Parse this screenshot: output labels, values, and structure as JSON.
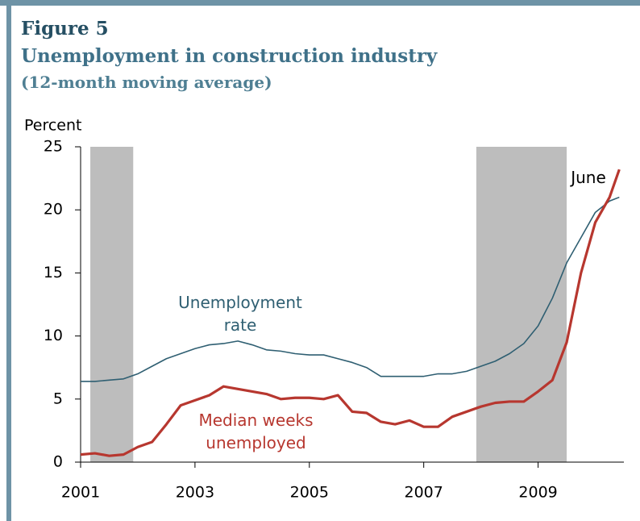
{
  "chart_data": {
    "type": "line",
    "title": "Figure 5",
    "subtitle": "Unemployment in construction industry",
    "note": "(12-month moving average)",
    "y_label": "Percent",
    "x": [
      2001.0,
      2001.25,
      2001.5,
      2001.75,
      2002.0,
      2002.25,
      2002.5,
      2002.75,
      2003.0,
      2003.25,
      2003.5,
      2003.75,
      2004.0,
      2004.25,
      2004.5,
      2004.75,
      2005.0,
      2005.25,
      2005.5,
      2005.75,
      2006.0,
      2006.25,
      2006.5,
      2006.75,
      2007.0,
      2007.25,
      2007.5,
      2007.75,
      2008.0,
      2008.25,
      2008.5,
      2008.75,
      2009.0,
      2009.25,
      2009.5,
      2009.75,
      2010.0,
      2010.25,
      2010.42
    ],
    "series": [
      {
        "name": "Unemployment rate",
        "color": "#2f5f72",
        "width": 1.6,
        "values": [
          6.4,
          6.4,
          6.5,
          6.6,
          7.0,
          7.6,
          8.2,
          8.6,
          9.0,
          9.3,
          9.4,
          9.6,
          9.3,
          8.9,
          8.8,
          8.6,
          8.5,
          8.5,
          8.2,
          7.9,
          7.5,
          6.8,
          6.8,
          6.8,
          6.8,
          7.0,
          7.0,
          7.2,
          7.6,
          8.0,
          8.6,
          9.4,
          10.8,
          13.0,
          15.8,
          17.8,
          19.8,
          20.7,
          21.0
        ]
      },
      {
        "name": "Median weeks unemployed",
        "color": "#b7372f",
        "width": 3.2,
        "values": [
          0.6,
          0.7,
          0.5,
          0.6,
          1.2,
          1.6,
          3.0,
          4.5,
          4.9,
          5.3,
          6.0,
          5.8,
          5.6,
          5.4,
          5.0,
          5.1,
          5.1,
          5.0,
          5.3,
          4.0,
          3.9,
          3.2,
          3.0,
          3.3,
          2.8,
          2.8,
          3.6,
          4.0,
          4.4,
          4.7,
          4.8,
          4.8,
          5.6,
          6.5,
          9.5,
          15.0,
          19.0,
          21.0,
          23.2
        ]
      }
    ],
    "annotation": "June",
    "recessions": [
      [
        2001.17,
        2001.92
      ],
      [
        2007.92,
        2009.5
      ]
    ],
    "recession_color": "#bdbdbd",
    "xlim": [
      2001,
      2010.5
    ],
    "xticks": [
      2001,
      2003,
      2005,
      2007,
      2009
    ],
    "ylim": [
      0,
      25
    ],
    "yticks": [
      0,
      5,
      10,
      15,
      20,
      25
    ]
  }
}
